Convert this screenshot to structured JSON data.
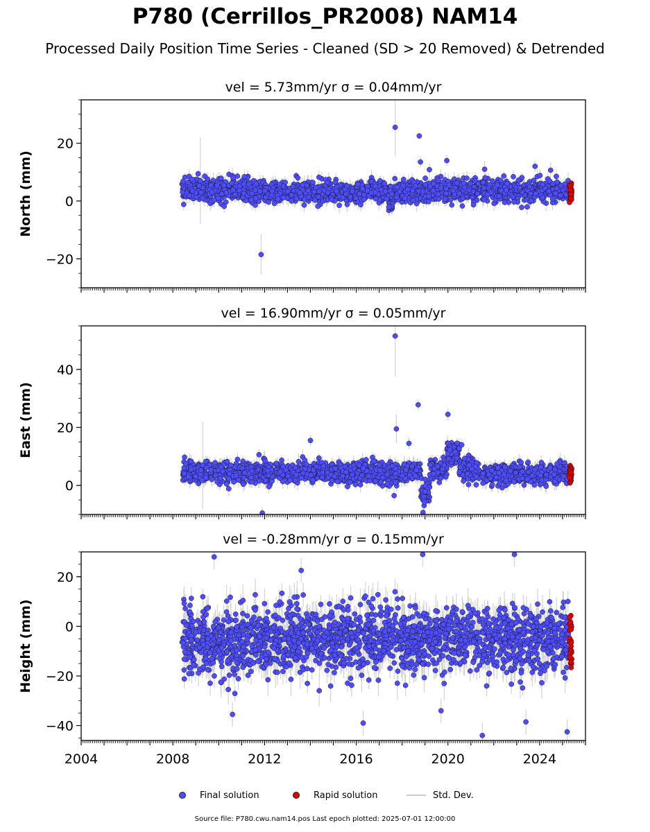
{
  "title": "P780 (Cerrillos_PR2008) NAM14",
  "subtitle": "Processed Daily Position Time Series - Cleaned (SD > 20 Removed) & Detrended",
  "legend": {
    "final": "Final solution",
    "rapid": "Rapid solution",
    "std": "Std. Dev."
  },
  "source_note": "Source file: P780.cwu.nam14.pos  Last epoch plotted: 2025-07-01 12:00:00",
  "colors": {
    "final": "#4d4dff",
    "rapid": "#e00000",
    "std": "#c8c8c8",
    "edge": "#1a1a1a"
  },
  "chart_data": [
    {
      "type": "scatter",
      "panel": "north",
      "title": "vel = 5.73mm/yr   σ = 0.04mm/yr",
      "ylabel": "North (mm)",
      "xlim": [
        2004.0,
        2026.0
      ],
      "ylim": [
        -30,
        35
      ],
      "yticks": [
        -20,
        0,
        20
      ],
      "xticks": [
        2004,
        2008,
        2012,
        2016,
        2020,
        2024
      ],
      "data_range": [
        2008.4,
        2025.45
      ],
      "rapid_range": [
        2025.3,
        2025.5
      ],
      "typical_sd": 2,
      "segments": [
        {
          "x0": 2008.4,
          "x1": 2012.0,
          "mean": 4.0,
          "spread": 2.5
        },
        {
          "x0": 2012.0,
          "x1": 2016.0,
          "mean": 3.0,
          "spread": 2.2
        },
        {
          "x0": 2016.0,
          "x1": 2019.0,
          "mean": 3.5,
          "spread": 2.5
        },
        {
          "x0": 2019.0,
          "x1": 2021.4,
          "mean": 3.5,
          "spread": 2.5
        },
        {
          "x0": 2021.5,
          "x1": 2025.3,
          "mean": 3.5,
          "spread": 2.5
        }
      ],
      "features": [
        {
          "x0": 2017.4,
          "x1": 2017.6,
          "mean": -1.5,
          "spread": 1.5
        }
      ],
      "outliers": [
        {
          "x": 2009.2,
          "y": 7,
          "sd": 15
        },
        {
          "x": 2011.85,
          "y": -18.5,
          "sd": 7
        },
        {
          "x": 2017.7,
          "y": 25.5,
          "sd": 10
        },
        {
          "x": 2018.75,
          "y": 22.5,
          "sd": 1
        },
        {
          "x": 2018.8,
          "y": 13.5,
          "sd": 2
        },
        {
          "x": 2019.95,
          "y": 14,
          "sd": 2
        },
        {
          "x": 2021.6,
          "y": 11,
          "sd": 3
        },
        {
          "x": 2023.8,
          "y": 12,
          "sd": 2
        }
      ]
    },
    {
      "type": "scatter",
      "panel": "east",
      "title": "vel = 16.90mm/yr   σ = 0.05mm/yr",
      "ylabel": "East (mm)",
      "xlim": [
        2004.0,
        2026.0
      ],
      "ylim": [
        -10,
        55
      ],
      "yticks": [
        0,
        20,
        40
      ],
      "xticks": [
        2004,
        2008,
        2012,
        2016,
        2020,
        2024
      ],
      "data_range": [
        2008.4,
        2025.45
      ],
      "rapid_range": [
        2025.3,
        2025.5
      ],
      "typical_sd": 2,
      "segments": [
        {
          "x0": 2008.4,
          "x1": 2012.0,
          "mean": 4.5,
          "spread": 2.5
        },
        {
          "x0": 2012.0,
          "x1": 2016.0,
          "mean": 4.5,
          "spread": 2.3
        },
        {
          "x0": 2016.0,
          "x1": 2018.8,
          "mean": 4.5,
          "spread": 2.4
        },
        {
          "x0": 2019.2,
          "x1": 2019.95,
          "mean": 5.5,
          "spread": 2.5
        },
        {
          "x0": 2019.95,
          "x1": 2020.5,
          "mean": 11,
          "spread": 2.5
        },
        {
          "x0": 2020.5,
          "x1": 2021.4,
          "mean": 6,
          "spread": 2.5
        },
        {
          "x0": 2021.5,
          "x1": 2025.3,
          "mean": 4,
          "spread": 2.3
        }
      ],
      "features": [
        {
          "x0": 2018.8,
          "x1": 2019.2,
          "mean": -3,
          "spread": 2.5
        }
      ],
      "outliers": [
        {
          "x": 2009.3,
          "y": 7,
          "sd": 15
        },
        {
          "x": 2011.9,
          "y": -9.5,
          "sd": 2
        },
        {
          "x": 2014.0,
          "y": 15.5,
          "sd": 2
        },
        {
          "x": 2017.7,
          "y": 51.5,
          "sd": 14
        },
        {
          "x": 2017.75,
          "y": 19.5,
          "sd": 5
        },
        {
          "x": 2018.7,
          "y": 27.8,
          "sd": 2
        },
        {
          "x": 2018.3,
          "y": 14.5,
          "sd": 2
        },
        {
          "x": 2020.0,
          "y": 24.5,
          "sd": 2
        },
        {
          "x": 2017.65,
          "y": -3.5,
          "sd": 2
        },
        {
          "x": 2020.6,
          "y": 14,
          "sd": 2
        }
      ]
    },
    {
      "type": "scatter",
      "panel": "height",
      "title": "vel = -0.28mm/yr   σ = 0.15mm/yr",
      "ylabel": "Height (mm)",
      "xlim": [
        2004.0,
        2026.0
      ],
      "ylim": [
        -46,
        30
      ],
      "yticks": [
        -40,
        -20,
        0,
        20
      ],
      "xticks": [
        2004,
        2008,
        2012,
        2016,
        2020,
        2024
      ],
      "data_range": [
        2008.4,
        2025.45
      ],
      "rapid_range": [
        2025.3,
        2025.5
      ],
      "typical_sd": 5,
      "segments": [
        {
          "x0": 2008.4,
          "x1": 2012.0,
          "mean": -6,
          "spread": 9
        },
        {
          "x0": 2012.0,
          "x1": 2016.0,
          "mean": -5,
          "spread": 9
        },
        {
          "x0": 2016.0,
          "x1": 2021.4,
          "mean": -5,
          "spread": 9
        },
        {
          "x0": 2021.5,
          "x1": 2025.3,
          "mean": -6,
          "spread": 9
        }
      ],
      "features": [],
      "outliers": [
        {
          "x": 2009.8,
          "y": 28,
          "sd": 5
        },
        {
          "x": 2018.9,
          "y": 29,
          "sd": 5
        },
        {
          "x": 2022.9,
          "y": 29,
          "sd": 5
        },
        {
          "x": 2013.6,
          "y": 22.5,
          "sd": 5
        },
        {
          "x": 2016.3,
          "y": -39,
          "sd": 5
        },
        {
          "x": 2021.5,
          "y": -44,
          "sd": 5
        },
        {
          "x": 2025.2,
          "y": -42.5,
          "sd": 5
        },
        {
          "x": 2010.6,
          "y": -35.5,
          "sd": 5
        },
        {
          "x": 2023.4,
          "y": -38.5,
          "sd": 5
        },
        {
          "x": 2019.7,
          "y": -34,
          "sd": 5
        }
      ]
    }
  ]
}
